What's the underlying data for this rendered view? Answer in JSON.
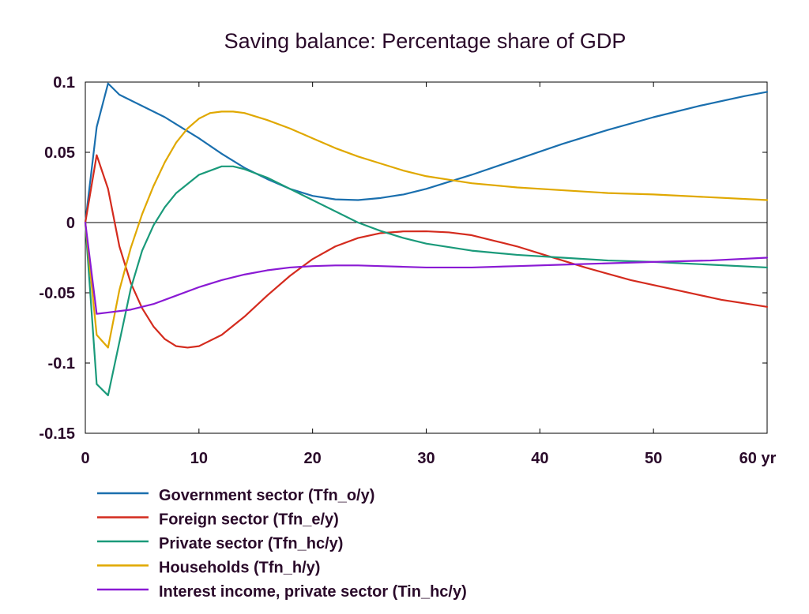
{
  "chart_data": {
    "type": "line",
    "title": "Saving balance: Percentage share of GDP",
    "xlabel": "",
    "ylabel": "",
    "x_unit": "yr",
    "xlim": [
      0,
      60
    ],
    "ylim": [
      -0.15,
      0.1
    ],
    "x_ticks": [
      0,
      10,
      20,
      30,
      40,
      50,
      60
    ],
    "x_tick_labels": [
      "0",
      "10",
      "20",
      "30",
      "40",
      "50",
      "60 yr"
    ],
    "y_ticks": [
      0.1,
      0.05,
      0,
      -0.05,
      -0.1,
      -0.15
    ],
    "y_tick_labels": [
      "0.1",
      "0.05",
      "0",
      "-0.05",
      "-0.1",
      "-0.15"
    ],
    "zero_line": true,
    "grid": false,
    "legend_position": "bottom",
    "series": [
      {
        "name": "Government sector (Tfn_o/y)",
        "color": "#1a6fae",
        "x": [
          0,
          1,
          2,
          3,
          4,
          5,
          6,
          7,
          8,
          10,
          12,
          14,
          16,
          18,
          20,
          22,
          24,
          26,
          28,
          30,
          34,
          38,
          42,
          46,
          50,
          54,
          58,
          60
        ],
        "y": [
          0,
          0.068,
          0.099,
          0.091,
          0.087,
          0.083,
          0.079,
          0.075,
          0.07,
          0.06,
          0.049,
          0.039,
          0.031,
          0.024,
          0.019,
          0.0165,
          0.016,
          0.0175,
          0.02,
          0.024,
          0.034,
          0.045,
          0.056,
          0.066,
          0.075,
          0.083,
          0.09,
          0.093
        ]
      },
      {
        "name": "Foreign sector (Tfn_e/y)",
        "color": "#d42b1e",
        "x": [
          0,
          1,
          2,
          3,
          4,
          5,
          6,
          7,
          8,
          9,
          10,
          12,
          14,
          16,
          18,
          20,
          22,
          24,
          26,
          28,
          30,
          32,
          34,
          36,
          38,
          40,
          44,
          48,
          52,
          56,
          60
        ],
        "y": [
          0,
          0.048,
          0.024,
          -0.017,
          -0.043,
          -0.061,
          -0.074,
          -0.083,
          -0.088,
          -0.089,
          -0.088,
          -0.08,
          -0.067,
          -0.052,
          -0.038,
          -0.026,
          -0.017,
          -0.011,
          -0.0075,
          -0.0063,
          -0.0062,
          -0.007,
          -0.009,
          -0.013,
          -0.017,
          -0.022,
          -0.032,
          -0.041,
          -0.048,
          -0.055,
          -0.06
        ]
      },
      {
        "name": "Private sector (Tfn_hc/y)",
        "color": "#1a9a7a",
        "x": [
          0,
          1,
          2,
          3,
          4,
          5,
          6,
          7,
          8,
          10,
          12,
          13,
          14,
          16,
          18,
          20,
          22,
          24,
          26,
          28,
          30,
          34,
          38,
          42,
          46,
          50,
          55,
          60
        ],
        "y": [
          0,
          -0.115,
          -0.123,
          -0.085,
          -0.047,
          -0.02,
          -0.002,
          0.011,
          0.021,
          0.034,
          0.04,
          0.04,
          0.038,
          0.032,
          0.024,
          0.016,
          0.008,
          0.0,
          -0.006,
          -0.011,
          -0.015,
          -0.02,
          -0.023,
          -0.025,
          -0.027,
          -0.028,
          -0.03,
          -0.032
        ]
      },
      {
        "name": "Households (Tfn_h/y)",
        "color": "#e0a800",
        "x": [
          0,
          1,
          2,
          3,
          4,
          5,
          6,
          7,
          8,
          9,
          10,
          11,
          12,
          13,
          14,
          16,
          18,
          20,
          22,
          24,
          26,
          28,
          30,
          34,
          38,
          42,
          46,
          50,
          55,
          60
        ],
        "y": [
          0,
          -0.08,
          -0.089,
          -0.048,
          -0.018,
          0.006,
          0.026,
          0.043,
          0.057,
          0.067,
          0.074,
          0.078,
          0.079,
          0.079,
          0.078,
          0.073,
          0.067,
          0.06,
          0.053,
          0.047,
          0.042,
          0.037,
          0.033,
          0.028,
          0.025,
          0.023,
          0.021,
          0.02,
          0.018,
          0.016
        ]
      },
      {
        "name": "Interest income, private sector (Tin_hc/y)",
        "color": "#8a1ad4",
        "x": [
          0,
          1,
          2,
          4,
          6,
          8,
          10,
          12,
          14,
          16,
          18,
          20,
          22,
          24,
          26,
          28,
          30,
          34,
          38,
          42,
          46,
          50,
          55,
          60
        ],
        "y": [
          0,
          -0.065,
          -0.064,
          -0.062,
          -0.058,
          -0.052,
          -0.046,
          -0.041,
          -0.037,
          -0.034,
          -0.032,
          -0.031,
          -0.0305,
          -0.0305,
          -0.031,
          -0.0315,
          -0.032,
          -0.032,
          -0.031,
          -0.03,
          -0.029,
          -0.028,
          -0.027,
          -0.025
        ]
      }
    ]
  }
}
